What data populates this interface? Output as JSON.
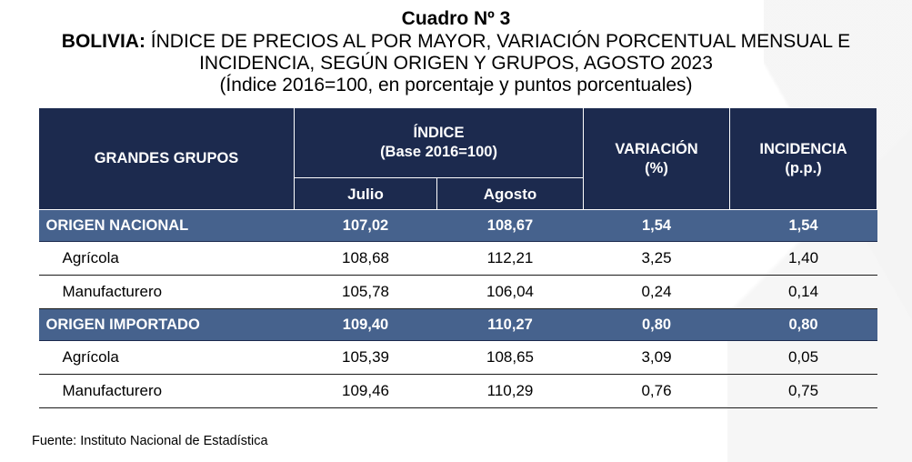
{
  "title": {
    "line1": "Cuadro Nº 3",
    "country": "BOLIVIA:",
    "line2_rest": " ÍNDICE DE PRECIOS AL POR MAYOR, VARIACIÓN PORCENTUAL MENSUAL E",
    "line3": "INCIDENCIA, SEGÚN ORIGEN Y GRUPOS, AGOSTO 2023",
    "line4": "(Índice 2016=100, en porcentaje y puntos porcentuales)"
  },
  "table": {
    "headers": {
      "groups": "GRANDES GRUPOS",
      "index_line1": "ÍNDICE",
      "index_line2": "(Base 2016=100)",
      "variation_line1": "VARIACIÓN",
      "variation_line2": "(%)",
      "incidence_line1": "INCIDENCIA",
      "incidence_line2": "(p.p.)",
      "july": "Julio",
      "august": "Agosto"
    },
    "rows": [
      {
        "name": "ORIGEN NACIONAL",
        "julio": "107,02",
        "agosto": "108,67",
        "variacion": "1,54",
        "incidencia": "1,54"
      },
      {
        "name": "Agrícola",
        "julio": "108,68",
        "agosto": "112,21",
        "variacion": "3,25",
        "incidencia": "1,40"
      },
      {
        "name": "Manufacturero",
        "julio": "105,78",
        "agosto": "106,04",
        "variacion": "0,24",
        "incidencia": "0,14"
      },
      {
        "name": "ORIGEN IMPORTADO",
        "julio": "109,40",
        "agosto": "110,27",
        "variacion": "0,80",
        "incidencia": "0,80"
      },
      {
        "name": "Agrícola",
        "julio": "105,39",
        "agosto": "108,65",
        "variacion": "3,09",
        "incidencia": "0,05"
      },
      {
        "name": "Manufacturero",
        "julio": "109,46",
        "agosto": "110,29",
        "variacion": "0,76",
        "incidencia": "0,75"
      }
    ]
  },
  "source": "Fuente: Instituto Nacional de Estadística",
  "colors": {
    "header_bg": "#1c2a4e",
    "group_row_bg": "#46628d",
    "text_light": "#ffffff"
  }
}
